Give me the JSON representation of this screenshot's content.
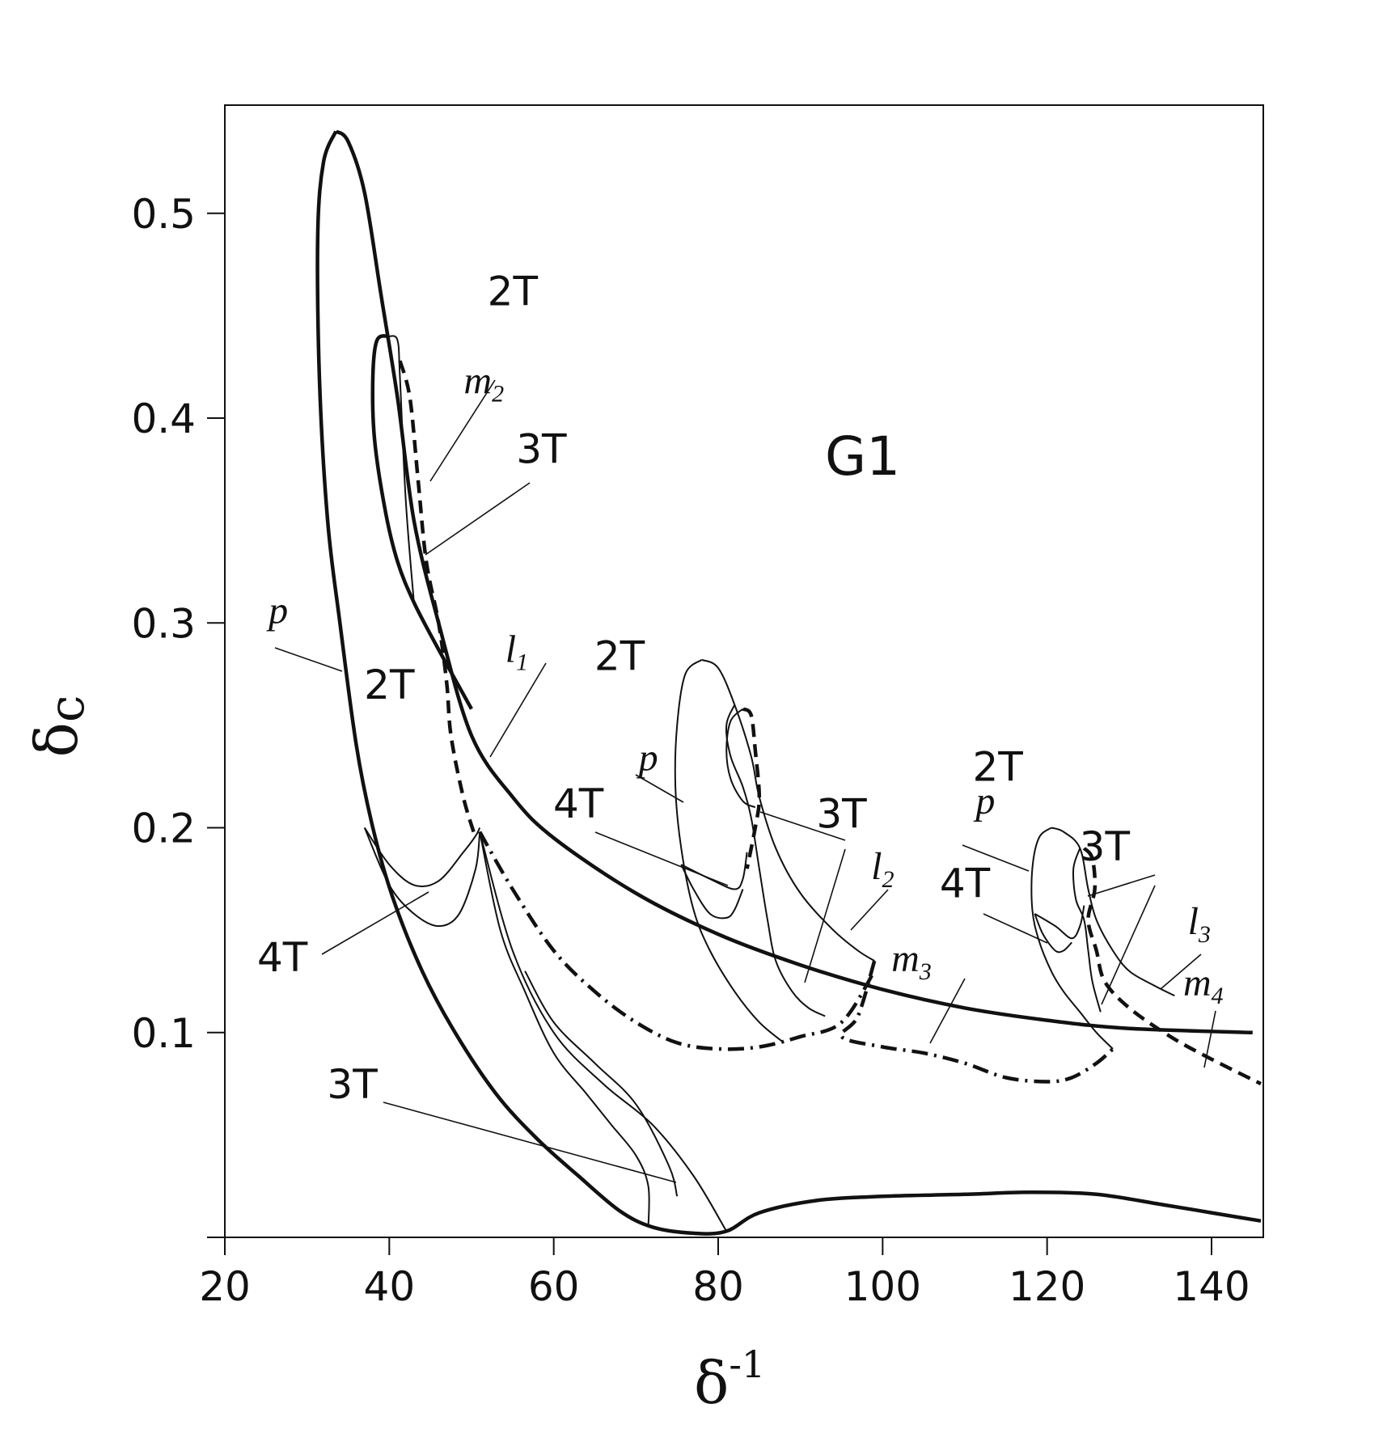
{
  "chart_data": {
    "type": "line",
    "panel_label": "G1",
    "xlabel": "δ",
    "xlabel_sup": "-1",
    "ylabel": "δ",
    "ylabel_sub": "c",
    "xlim": [
      20,
      147
    ],
    "ylim": [
      0,
      0.55
    ],
    "x_ticks": [
      "20",
      "40",
      "60",
      "80",
      "100",
      "120",
      "140"
    ],
    "x_tick_values": [
      20,
      40,
      60,
      80,
      100,
      120,
      140
    ],
    "y_ticks": [
      "0.1",
      "0.2",
      "0.3",
      "0.4",
      "0.5"
    ],
    "y_tick_values": [
      0.1,
      0.2,
      0.3,
      0.4,
      0.5
    ],
    "grid": false,
    "legend": "none",
    "series": [
      {
        "style": "thick",
        "points": [
          [
            33.5,
            0.54
          ],
          [
            35,
            0.535
          ],
          [
            37,
            0.51
          ],
          [
            39,
            0.46
          ],
          [
            41,
            0.41
          ],
          [
            43,
            0.35
          ],
          [
            46,
            0.3
          ],
          [
            50,
            0.245
          ],
          [
            55,
            0.215
          ],
          [
            60,
            0.195
          ],
          [
            70,
            0.168
          ],
          [
            80,
            0.148
          ],
          [
            90,
            0.133
          ],
          [
            100,
            0.121
          ],
          [
            110,
            0.112
          ],
          [
            120,
            0.106
          ],
          [
            130,
            0.102
          ],
          [
            145,
            0.1
          ]
        ]
      },
      {
        "style": "thick",
        "points": [
          [
            33.5,
            0.54
          ],
          [
            32,
            0.525
          ],
          [
            31.3,
            0.49
          ],
          [
            31.5,
            0.42
          ],
          [
            32.5,
            0.35
          ],
          [
            34,
            0.3
          ],
          [
            36,
            0.24
          ],
          [
            38,
            0.2
          ],
          [
            40.5,
            0.165
          ],
          [
            44,
            0.13
          ],
          [
            48,
            0.1
          ],
          [
            53,
            0.07
          ],
          [
            58,
            0.048
          ],
          [
            63,
            0.03
          ],
          [
            68,
            0.013
          ],
          [
            72,
            0.005
          ],
          [
            77,
            0.002
          ],
          [
            81,
            0.003
          ],
          [
            85,
            0.012
          ],
          [
            92,
            0.018
          ],
          [
            100,
            0.02
          ],
          [
            110,
            0.021
          ],
          [
            118,
            0.022
          ],
          [
            126,
            0.021
          ],
          [
            134,
            0.016
          ],
          [
            140,
            0.012
          ],
          [
            146,
            0.008
          ]
        ]
      },
      {
        "style": "thick",
        "points": [
          [
            40,
            0.44
          ],
          [
            38.5,
            0.438
          ],
          [
            38,
            0.42
          ],
          [
            38.2,
            0.39
          ],
          [
            39.5,
            0.355
          ],
          [
            41,
            0.33
          ],
          [
            43,
            0.31
          ],
          [
            46,
            0.287
          ],
          [
            50,
            0.258
          ]
        ]
      },
      {
        "style": "thin",
        "points": [
          [
            40,
            0.44
          ],
          [
            41,
            0.438
          ],
          [
            41.3,
            0.42
          ],
          [
            42,
            0.36
          ],
          [
            43,
            0.31
          ]
        ]
      },
      {
        "style": "dashed",
        "points": [
          [
            41.3,
            0.428
          ],
          [
            42.5,
            0.41
          ],
          [
            43.5,
            0.37
          ],
          [
            44.5,
            0.33
          ],
          [
            46,
            0.3
          ],
          [
            47,
            0.27
          ],
          [
            47.5,
            0.245
          ],
          [
            49,
            0.215
          ],
          [
            50.5,
            0.195
          ]
        ]
      },
      {
        "style": "thin",
        "points": [
          [
            37,
            0.2
          ],
          [
            40,
            0.182
          ],
          [
            43,
            0.172
          ],
          [
            46,
            0.174
          ],
          [
            49,
            0.188
          ],
          [
            50.5,
            0.196
          ],
          [
            51,
            0.2
          ]
        ]
      },
      {
        "style": "thin",
        "points": [
          [
            37,
            0.2
          ],
          [
            40,
            0.172
          ],
          [
            43,
            0.158
          ],
          [
            46,
            0.152
          ],
          [
            48.5,
            0.158
          ],
          [
            50.5,
            0.18
          ],
          [
            51,
            0.198
          ]
        ]
      },
      {
        "style": "thin",
        "points": [
          [
            51,
            0.198
          ],
          [
            53.5,
            0.15
          ],
          [
            56.5,
            0.12
          ],
          [
            60,
            0.09
          ],
          [
            64,
            0.07
          ],
          [
            67,
            0.055
          ],
          [
            70,
            0.04
          ],
          [
            71.5,
            0.025
          ],
          [
            71.5,
            0.005
          ]
        ]
      },
      {
        "style": "thin",
        "points": [
          [
            51,
            0.198
          ],
          [
            55,
            0.14
          ],
          [
            60,
            0.1
          ],
          [
            66,
            0.075
          ],
          [
            72,
            0.055
          ],
          [
            77,
            0.03
          ],
          [
            81,
            0.003
          ]
        ]
      },
      {
        "style": "thin",
        "points": [
          [
            56.5,
            0.13
          ],
          [
            60,
            0.105
          ],
          [
            65,
            0.085
          ],
          [
            70,
            0.065
          ],
          [
            74,
            0.035
          ],
          [
            75,
            0.02
          ]
        ]
      },
      {
        "style": "dashdot",
        "points": [
          [
            51,
            0.198
          ],
          [
            55,
            0.17
          ],
          [
            60,
            0.14
          ],
          [
            65,
            0.12
          ],
          [
            70,
            0.105
          ],
          [
            75,
            0.095
          ],
          [
            80,
            0.092
          ],
          [
            85,
            0.093
          ],
          [
            90,
            0.098
          ],
          [
            95,
            0.105
          ],
          [
            99,
            0.13
          ]
        ]
      },
      {
        "style": "thin",
        "points": [
          [
            78,
            0.282
          ],
          [
            80,
            0.278
          ],
          [
            82,
            0.26
          ],
          [
            84,
            0.235
          ],
          [
            85,
            0.215
          ],
          [
            87,
            0.19
          ],
          [
            90,
            0.168
          ],
          [
            94,
            0.15
          ],
          [
            97,
            0.14
          ],
          [
            99,
            0.135
          ]
        ]
      },
      {
        "style": "thin",
        "points": [
          [
            78,
            0.282
          ],
          [
            76,
            0.275
          ],
          [
            75,
            0.25
          ],
          [
            74.8,
            0.22
          ],
          [
            75.5,
            0.19
          ],
          [
            77,
            0.16
          ],
          [
            79,
            0.14
          ],
          [
            82,
            0.12
          ],
          [
            85,
            0.105
          ],
          [
            88,
            0.095
          ]
        ]
      },
      {
        "style": "thin",
        "points": [
          [
            83,
            0.258
          ],
          [
            81.5,
            0.252
          ],
          [
            81,
            0.238
          ],
          [
            81.5,
            0.224
          ],
          [
            83,
            0.213
          ],
          [
            84.5,
            0.21
          ]
        ]
      },
      {
        "style": "dashed",
        "points": [
          [
            83,
            0.258
          ],
          [
            84,
            0.255
          ],
          [
            84.5,
            0.238
          ],
          [
            85,
            0.215
          ],
          [
            84.5,
            0.2
          ],
          [
            83.5,
            0.18
          ]
        ]
      },
      {
        "style": "thin",
        "points": [
          [
            82,
            0.26
          ],
          [
            81,
            0.25
          ],
          [
            81.5,
            0.235
          ],
          [
            83,
            0.22
          ],
          [
            84,
            0.205
          ],
          [
            85,
            0.18
          ],
          [
            86,
            0.155
          ],
          [
            87,
            0.135
          ],
          [
            89,
            0.12
          ],
          [
            91,
            0.112
          ],
          [
            93,
            0.108
          ]
        ]
      },
      {
        "style": "thin",
        "points": [
          [
            75.5,
            0.182
          ],
          [
            79,
            0.175
          ],
          [
            82,
            0.17
          ],
          [
            83,
            0.175
          ],
          [
            83.5,
            0.188
          ]
        ]
      },
      {
        "style": "thin",
        "points": [
          [
            75.5,
            0.182
          ],
          [
            77,
            0.17
          ],
          [
            79,
            0.158
          ],
          [
            81,
            0.156
          ],
          [
            82,
            0.16
          ],
          [
            83,
            0.17
          ]
        ]
      },
      {
        "style": "dashdot",
        "points": [
          [
            99,
            0.135
          ],
          [
            97,
            0.108
          ],
          [
            95,
            0.098
          ],
          [
            100,
            0.093
          ],
          [
            105,
            0.09
          ],
          [
            110,
            0.085
          ],
          [
            115,
            0.078
          ],
          [
            120,
            0.076
          ],
          [
            123,
            0.078
          ],
          [
            126,
            0.085
          ],
          [
            128,
            0.092
          ]
        ]
      },
      {
        "style": "thin",
        "points": [
          [
            120.5,
            0.2
          ],
          [
            122,
            0.198
          ],
          [
            124,
            0.19
          ],
          [
            125,
            0.17
          ],
          [
            126,
            0.155
          ],
          [
            128,
            0.14
          ],
          [
            130,
            0.13
          ],
          [
            133,
            0.123
          ],
          [
            135.5,
            0.118
          ]
        ]
      },
      {
        "style": "thin",
        "points": [
          [
            120.5,
            0.2
          ],
          [
            119,
            0.195
          ],
          [
            118.2,
            0.18
          ],
          [
            118.2,
            0.16
          ],
          [
            119,
            0.145
          ],
          [
            120.5,
            0.13
          ],
          [
            122,
            0.12
          ],
          [
            124,
            0.11
          ],
          [
            126,
            0.1
          ],
          [
            128,
            0.092
          ]
        ]
      },
      {
        "style": "thin",
        "points": [
          [
            124,
            0.19
          ],
          [
            123.2,
            0.18
          ],
          [
            123.5,
            0.165
          ],
          [
            124.5,
            0.155
          ],
          [
            125,
            0.14
          ],
          [
            125.5,
            0.125
          ],
          [
            126.5,
            0.11
          ]
        ]
      },
      {
        "style": "dashed",
        "points": [
          [
            124.5,
            0.19
          ],
          [
            125.5,
            0.185
          ],
          [
            125.8,
            0.17
          ],
          [
            125,
            0.155
          ],
          [
            126,
            0.14
          ],
          [
            127,
            0.125
          ],
          [
            130,
            0.112
          ],
          [
            135,
            0.098
          ],
          [
            140,
            0.087
          ],
          [
            146,
            0.075
          ]
        ]
      },
      {
        "style": "thin",
        "points": [
          [
            118.5,
            0.158
          ],
          [
            121,
            0.152
          ],
          [
            123,
            0.146
          ],
          [
            124,
            0.152
          ],
          [
            124.5,
            0.162
          ]
        ]
      },
      {
        "style": "thin",
        "points": [
          [
            118.5,
            0.158
          ],
          [
            119.5,
            0.148
          ],
          [
            121,
            0.14
          ],
          [
            122,
            0.14
          ],
          [
            123,
            0.144
          ]
        ]
      }
    ],
    "annotations": [
      {
        "text": "2T",
        "x": 55,
        "y": 0.455
      },
      {
        "text": "2T",
        "x": 40,
        "y": 0.263
      },
      {
        "text": "2T",
        "x": 68,
        "y": 0.277
      },
      {
        "text": "2T",
        "x": 114,
        "y": 0.223
      },
      {
        "text": "3T",
        "x": 58.5,
        "y": 0.378
      },
      {
        "text": "3T",
        "x": 95,
        "y": 0.2
      },
      {
        "text": "3T",
        "x": 127,
        "y": 0.184
      },
      {
        "text": "3T",
        "x": 35.5,
        "y": 0.068
      },
      {
        "text": "4T",
        "x": 27,
        "y": 0.13
      },
      {
        "text": "4T",
        "x": 63,
        "y": 0.205
      },
      {
        "text": "4T",
        "x": 110,
        "y": 0.166
      },
      {
        "text": "p",
        "x": 26.5,
        "y": 0.3
      },
      {
        "text": "p",
        "x": 71.5,
        "y": 0.228
      },
      {
        "text": "p",
        "x": 112.5,
        "y": 0.207
      },
      {
        "text": "m",
        "sub": "2",
        "x": 51.5,
        "y": 0.412
      },
      {
        "text": "m",
        "sub": "3",
        "x": 103.5,
        "y": 0.13
      },
      {
        "text": "m",
        "sub": "4",
        "x": 139,
        "y": 0.118
      },
      {
        "text": "l",
        "sub": "1",
        "x": 55.5,
        "y": 0.281
      },
      {
        "text": "l",
        "sub": "2",
        "x": 100,
        "y": 0.175
      },
      {
        "text": "l",
        "sub": "3",
        "x": 138.5,
        "y": 0.148
      }
    ]
  }
}
